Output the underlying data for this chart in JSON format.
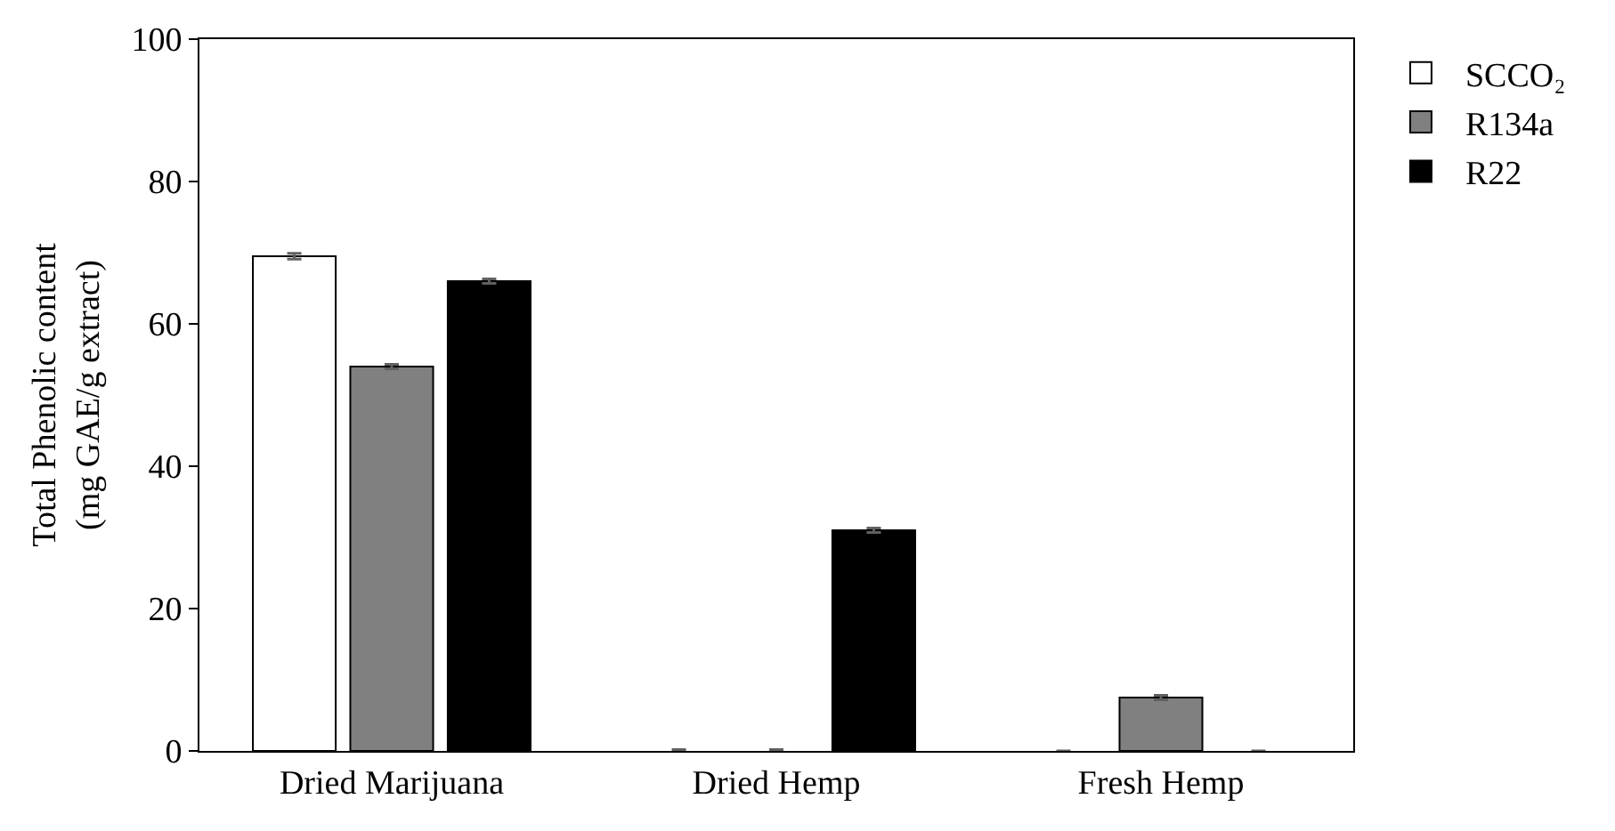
{
  "chart_data": {
    "type": "bar",
    "ylabel": "Total Phenolic content\n(mg GAE/g extract)",
    "categories": [
      "Dried Marijuana",
      "Dried Hemp",
      "Fresh Hemp"
    ],
    "series": [
      {
        "name": "SCCO₂",
        "color": "#ffffff",
        "values": [
          69.5,
          0,
          0
        ],
        "errors": [
          0.4,
          0.2,
          null
        ]
      },
      {
        "name": "R134a",
        "color": "#808080",
        "values": [
          54,
          0,
          7.5
        ],
        "errors": [
          0.3,
          0.2,
          0.3
        ]
      },
      {
        "name": "R22",
        "color": "#000000",
        "values": [
          66,
          31,
          0
        ],
        "errors": [
          0.3,
          0.3,
          null
        ]
      }
    ],
    "ylim": [
      0,
      100
    ],
    "yticks": [
      0,
      20,
      40,
      60,
      80,
      100
    ],
    "grid": false,
    "legend": "top right"
  }
}
